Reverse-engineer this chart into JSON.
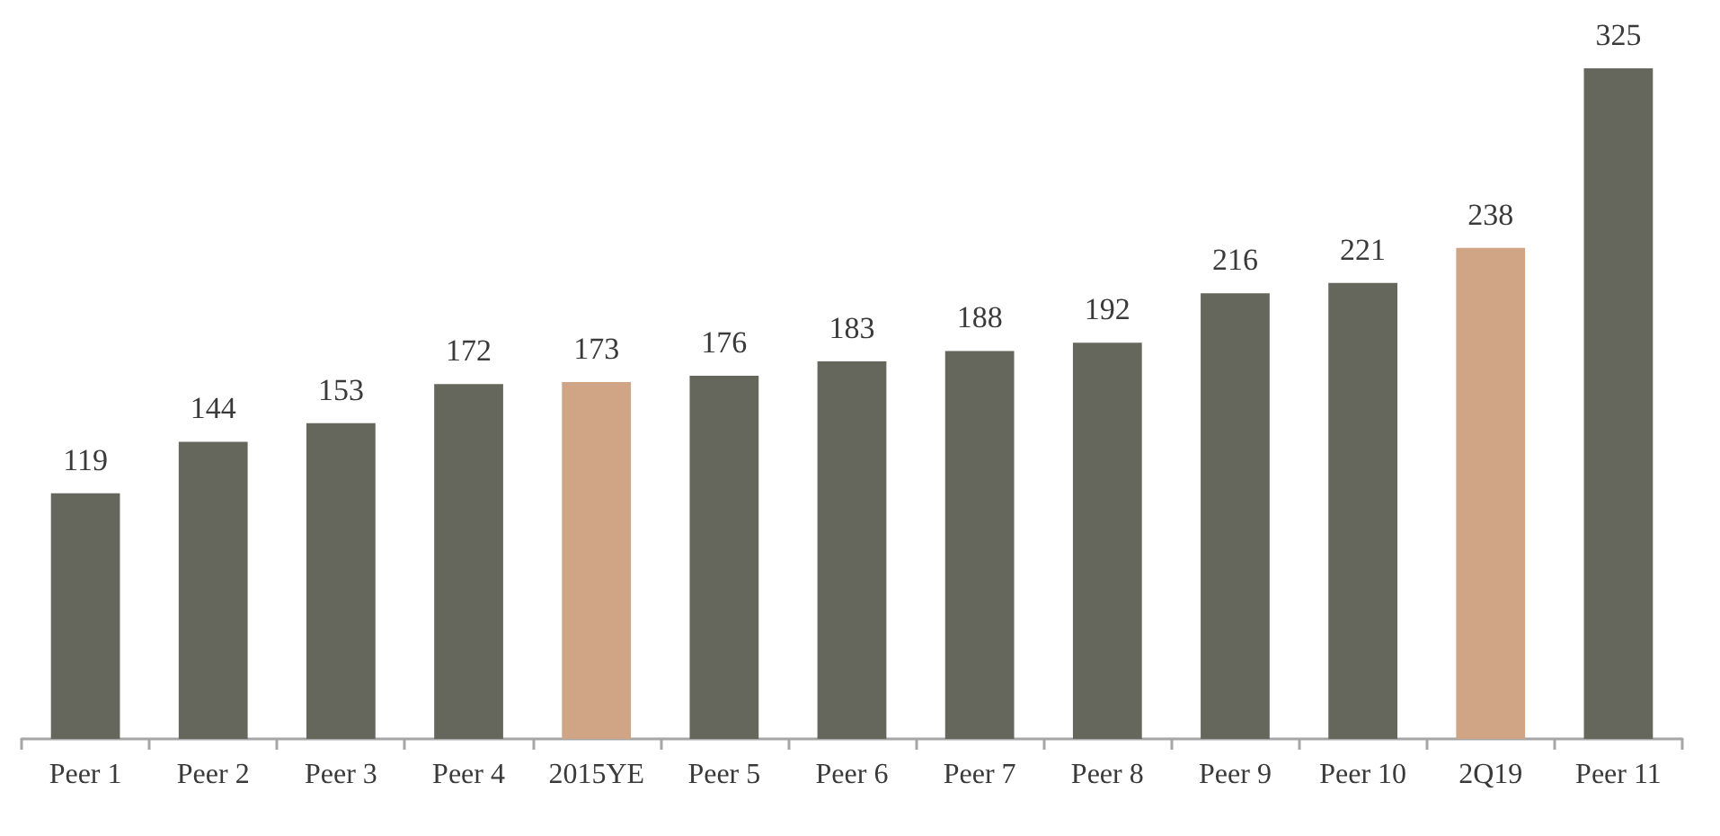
{
  "chart_data": {
    "type": "bar",
    "categories": [
      "Peer 1",
      "Peer 2",
      "Peer 3",
      "Peer 4",
      "2015YE",
      "Peer 5",
      "Peer 6",
      "Peer 7",
      "Peer 8",
      "Peer 9",
      "Peer 10",
      "2Q19",
      "Peer 11"
    ],
    "values": [
      119,
      144,
      153,
      172,
      173,
      176,
      183,
      188,
      192,
      216,
      221,
      238,
      325
    ],
    "colors": [
      "#66675c",
      "#66675c",
      "#66675c",
      "#66675c",
      "#cfa585",
      "#66675c",
      "#66675c",
      "#66675c",
      "#66675c",
      "#66675c",
      "#66675c",
      "#cfa585",
      "#66675c"
    ],
    "data_labels": true
  }
}
